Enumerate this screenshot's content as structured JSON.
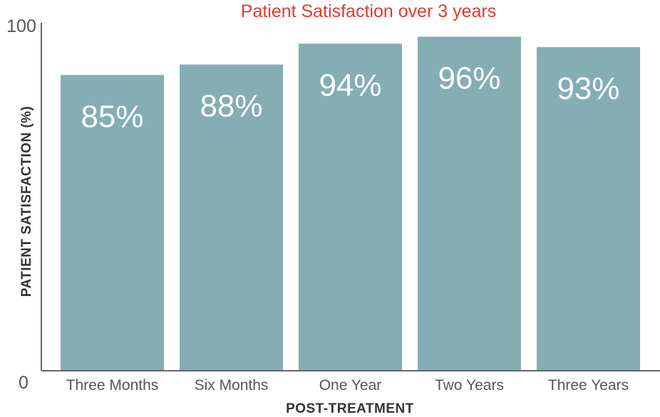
{
  "chart_data": {
    "type": "bar",
    "title": "Patient Satisfaction over 3 years",
    "xlabel": "POST-TREATMENT",
    "ylabel": "PATIENT SATISFACTION (%)",
    "ylim": [
      0,
      100
    ],
    "yticks": [
      "0",
      "100"
    ],
    "categories": [
      "Three Months",
      "Six Months",
      "One Year",
      "Two Years",
      "Three Years"
    ],
    "values": [
      85,
      88,
      94,
      96,
      93
    ],
    "data_labels": [
      "85%",
      "88%",
      "94%",
      "96%",
      "93%"
    ],
    "grid": false,
    "legend": "none"
  },
  "colors": {
    "bar": "#84adb4",
    "title": "#e03a2f",
    "axis": "#666666",
    "text": "#555555",
    "axis_label": "#333333",
    "data_label": "#ffffff"
  }
}
